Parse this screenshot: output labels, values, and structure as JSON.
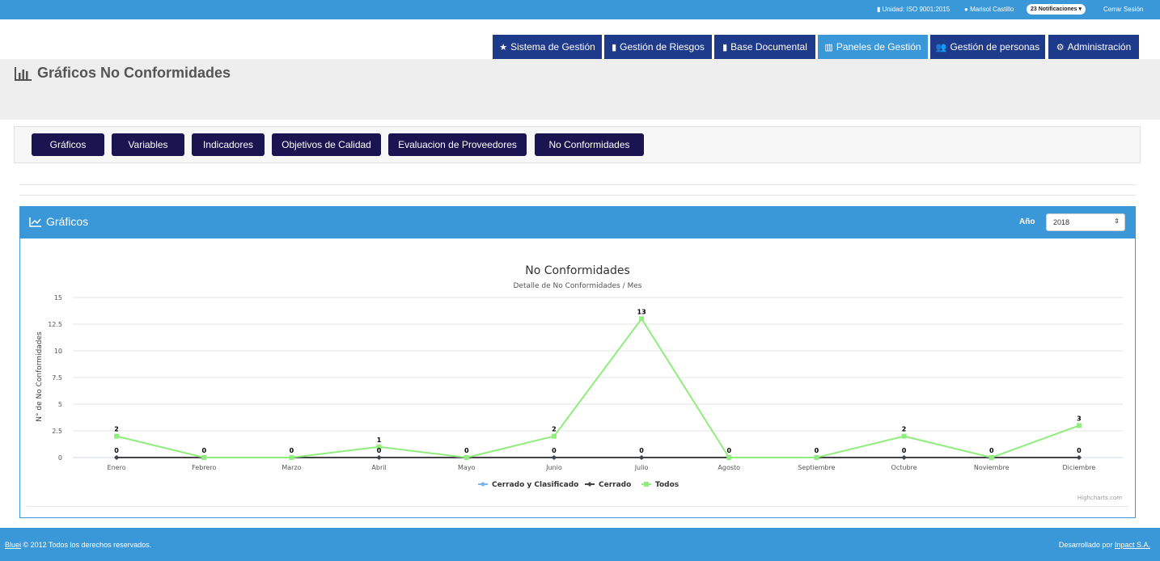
{
  "topbar": {
    "unit": "Unidad: ISO 9001:2015",
    "user": "Marisol Castillo",
    "notifications": "23 Notificaciones",
    "logout": "Cerrar Sesión"
  },
  "nav": [
    {
      "label": "Sistema de Gestión",
      "icon": "star-icon"
    },
    {
      "label": "Gestión de Riesgos",
      "icon": "file-icon"
    },
    {
      "label": "Base Documental",
      "icon": "file-icon"
    },
    {
      "label": "Paneles de Gestión",
      "icon": "bar-chart-icon",
      "active": true
    },
    {
      "label": "Gestión de personas",
      "icon": "users-icon"
    },
    {
      "label": "Administración",
      "icon": "cogs-icon"
    }
  ],
  "page": {
    "title": "Gráficos No Conformidades"
  },
  "subnav": [
    "Gráficos",
    "Variables",
    "Indicadores",
    "Objetivos de Calidad",
    "Evaluacion de Proveedores",
    "No Conformidades"
  ],
  "panel": {
    "title": "Gráficos",
    "year_label": "Año",
    "year_value": "2018"
  },
  "colors": {
    "accent": "#3a97d8",
    "nav": "#1e3a8a",
    "button": "#1a1550",
    "series_cerrado_clasificado": "#7cb5ec",
    "series_cerrado": "#434348",
    "series_todos": "#90ed7d"
  },
  "chart_data": {
    "type": "line",
    "title": "No Conformidades",
    "subtitle": "Detalle de No Conformidades / Mes",
    "ylabel": "N° de No Conformidades",
    "xlabel": "",
    "ylim": [
      0,
      15
    ],
    "yticks": [
      "15",
      "12.5",
      "10",
      "7.5",
      "5",
      "2.5",
      "0"
    ],
    "categories": [
      "Enero",
      "Febrero",
      "Marzo",
      "Abril",
      "Mayo",
      "Junio",
      "Julio",
      "Agosto",
      "Septiembre",
      "Octubre",
      "Noviembre",
      "Diciembre"
    ],
    "series": [
      {
        "name": "Cerrado y Clasificado",
        "values": [
          0,
          0,
          0,
          0,
          0,
          0,
          0,
          0,
          0,
          0,
          0,
          0
        ]
      },
      {
        "name": "Cerrado",
        "values": [
          0,
          0,
          0,
          0,
          0,
          0,
          0,
          0,
          0,
          0,
          0,
          0
        ]
      },
      {
        "name": "Todos",
        "values": [
          2,
          0,
          0,
          1,
          0,
          2,
          13,
          0,
          0,
          2,
          0,
          3
        ]
      }
    ],
    "legend_position": "bottom",
    "credits": "Highcharts.com"
  },
  "footer": {
    "brand": "Bluei",
    "copyright": "© 2012 Todos los derechos reservados.",
    "dev_prefix": "Desarrollado por",
    "dev_company": "Inpact S.A."
  }
}
